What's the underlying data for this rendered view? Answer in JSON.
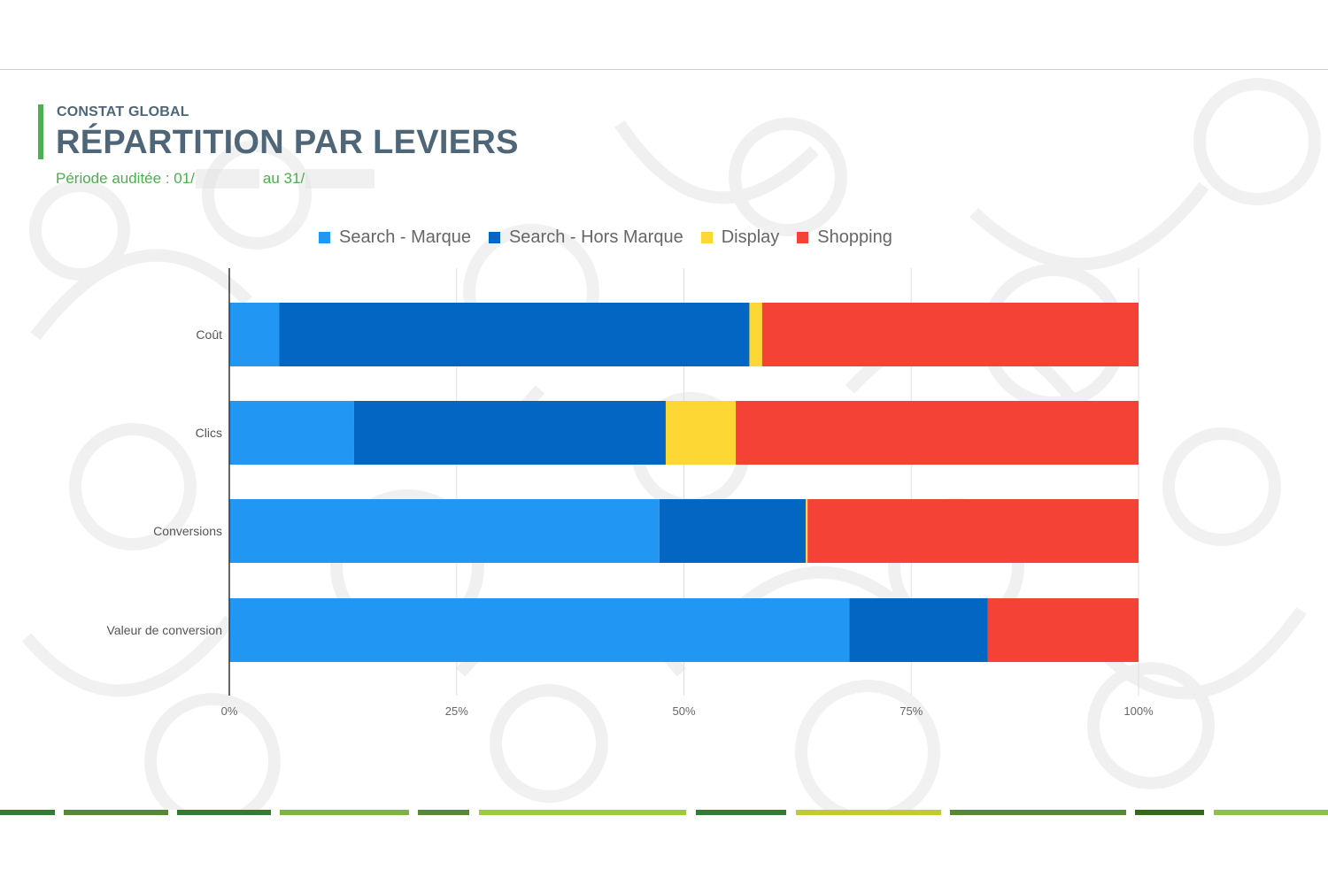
{
  "header": {
    "kicker": "CONSTAT GLOBAL",
    "title": "RÉPARTITION PAR LEVIERS",
    "period_prefix": "Période auditée : 01/",
    "period_middle": "au 31/"
  },
  "colors": {
    "brand_green": "#4caf50",
    "heading": "#4e6677",
    "search_marque": "#2196f3",
    "search_hors_marque": "#0366c2",
    "display": "#fdd835",
    "shopping": "#f44336"
  },
  "chart_data": {
    "type": "bar",
    "orientation": "horizontal",
    "stacked": "percent",
    "categories": [
      "Coût",
      "Clics",
      "Conversions",
      "Valeur de conversion"
    ],
    "series": [
      {
        "name": "Search - Marque",
        "color": "#2196f3",
        "values": [
          5.5,
          13.7,
          47.3,
          68.2
        ]
      },
      {
        "name": "Search - Hors Marque",
        "color": "#0366c2",
        "values": [
          51.7,
          34.3,
          16.1,
          15.2
        ]
      },
      {
        "name": "Display",
        "color": "#fdd835",
        "values": [
          1.4,
          7.7,
          0.2,
          0
        ]
      },
      {
        "name": "Shopping",
        "color": "#f44336",
        "values": [
          41.4,
          44.3,
          36.4,
          16.6
        ]
      }
    ],
    "x_ticks": [
      "0%",
      "25%",
      "50%",
      "75%",
      "100%"
    ],
    "xlim": [
      0,
      100
    ],
    "legend_position": "top",
    "grid": true
  }
}
